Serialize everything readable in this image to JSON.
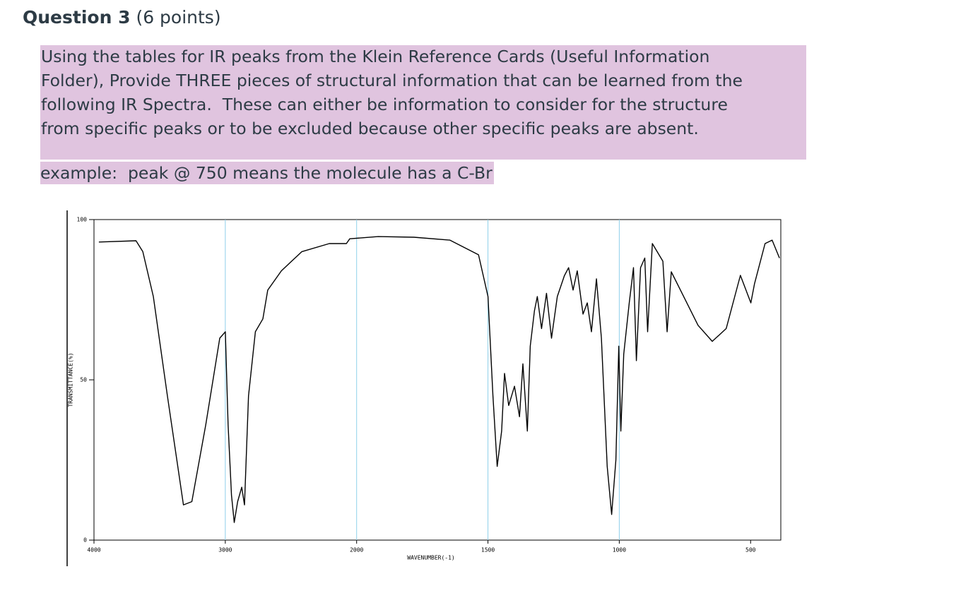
{
  "header": {
    "title": "Question 3",
    "points": "(6 points)"
  },
  "question": {
    "lines": [
      "Using the tables for IR peaks from the Klein Reference Cards (Useful Information",
      "Folder), Provide THREE pieces of structural information that can be learned from the",
      "following IR Spectra.  These can either be information to consider for the structure",
      "from specific peaks or to be excluded because other specific peaks are absent."
    ],
    "example": "example:  peak @ 750 means the molecule has a C-Br"
  },
  "chart_data": {
    "type": "line",
    "xlabel": "WAVENUMBER(-1)",
    "ylabel": "TRANSMITTANCE(%)",
    "x": [
      3963,
      3680,
      3628,
      3548,
      3441,
      3319,
      3255,
      3149,
      3042,
      3000,
      2979,
      2953,
      2932,
      2906,
      2875,
      2854,
      2823,
      2771,
      2714,
      2677,
      2573,
      2417,
      2208,
      2078,
      2052,
      1918,
      1782,
      1645,
      1536,
      1500,
      1481,
      1465,
      1448,
      1437,
      1421,
      1399,
      1380,
      1367,
      1350,
      1339,
      1323,
      1312,
      1296,
      1277,
      1258,
      1236,
      1209,
      1193,
      1176,
      1160,
      1138,
      1122,
      1106,
      1087,
      1068,
      1046,
      1029,
      1013,
      1002,
      994,
      983,
      962,
      946,
      935,
      919,
      903,
      892,
      874,
      834,
      818,
      802,
      767,
      700,
      646,
      593,
      539,
      499,
      485,
      445,
      418,
      390
    ],
    "values": [
      93,
      93.4,
      90,
      76,
      45,
      11,
      12,
      36,
      63,
      65,
      36,
      14,
      5.5,
      12,
      16.5,
      11,
      45,
      65,
      69,
      78,
      84,
      90,
      92.5,
      92.5,
      94,
      94.7,
      94.5,
      93.6,
      89,
      76,
      45,
      23,
      34,
      52,
      42,
      48,
      38.5,
      55,
      34,
      60.5,
      71.5,
      76,
      66,
      77,
      63,
      76,
      82.5,
      85,
      78,
      84,
      70.5,
      74,
      65,
      81.5,
      63,
      23,
      8,
      25,
      60.5,
      34,
      58,
      74,
      85,
      56,
      85,
      88,
      65,
      92.5,
      87,
      65,
      83.7,
      78,
      67,
      62,
      66,
      82.6,
      74,
      80,
      92.5,
      93.6,
      88
    ],
    "color": "#000000",
    "xlim": [
      4000,
      385
    ],
    "ylim": [
      0,
      100
    ],
    "xticks": [
      4000,
      3000,
      2000,
      1500,
      1000,
      500
    ],
    "yticks": [
      0,
      50,
      100
    ],
    "grid": true,
    "grid_color": "#8fd0ea"
  }
}
